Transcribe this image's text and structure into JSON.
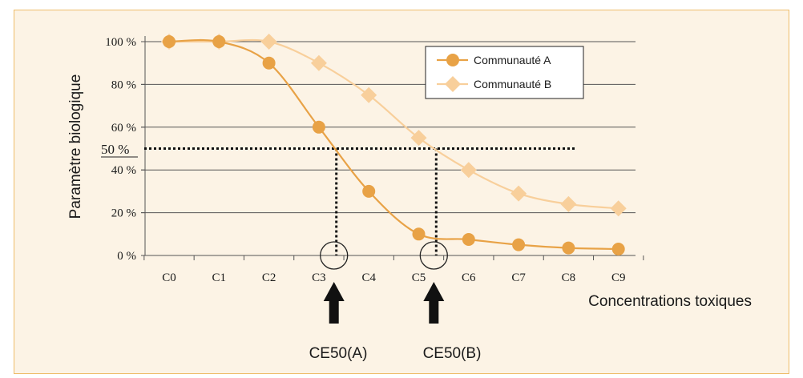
{
  "chart_data": {
    "type": "line",
    "xlabel": "Concentrations toxiques",
    "ylabel": "Paramètre biologique",
    "categories": [
      "C0",
      "C1",
      "C2",
      "C3",
      "C4",
      "C5",
      "C6",
      "C7",
      "C8",
      "C9"
    ],
    "ylim": [
      0,
      100
    ],
    "yticks": [
      "0 %",
      "20 %",
      "40 %",
      "60 %",
      "80 %",
      "100 %"
    ],
    "grid": "horizontal",
    "legend": "top-right",
    "series": [
      {
        "name": "Communauté A",
        "marker": "circle",
        "color": "#e8a246",
        "values": [
          100,
          100,
          90,
          60,
          30,
          10,
          7.5,
          5,
          3.5,
          3
        ]
      },
      {
        "name": "Communauté B",
        "marker": "diamond",
        "color": "#f8cf9b",
        "values": [
          100,
          100,
          100,
          90,
          75,
          55,
          40,
          29,
          24,
          22
        ]
      }
    ],
    "threshold": {
      "label": "50 %",
      "value": 50
    },
    "annotations": [
      {
        "label": "CE50(A)",
        "x": 3.35
      },
      {
        "label": "CE50(B)",
        "x": 5.35
      }
    ]
  }
}
